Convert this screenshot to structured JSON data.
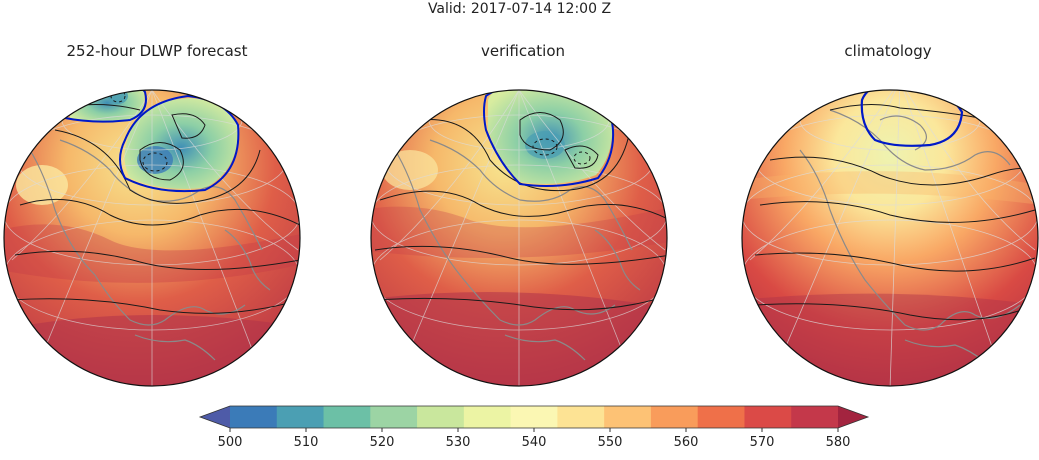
{
  "header": {
    "title": "Valid: 2017-07-14 12:00 Z"
  },
  "panels": [
    {
      "title": "252-hour DLWP forecast"
    },
    {
      "title": "verification"
    },
    {
      "title": "climatology"
    }
  ],
  "chart_data": {
    "type": "heatmap",
    "title": "Valid: 2017-07-14 12:00 Z",
    "variable_range": [
      500,
      580
    ],
    "colorbar": {
      "ticks": [
        500,
        510,
        520,
        530,
        540,
        550,
        560,
        570,
        580
      ],
      "levels": [
        500,
        505,
        510,
        515,
        520,
        525,
        530,
        535,
        540,
        545,
        550,
        555,
        560,
        565,
        570,
        575,
        580
      ],
      "colors": [
        "#4e5ba8",
        "#3b7bb8",
        "#4b9fb3",
        "#6cc0a6",
        "#9cd4a4",
        "#c9e79d",
        "#ecf4a4",
        "#fbf7b3",
        "#fde394",
        "#fdc275",
        "#f99c5b",
        "#ef7049",
        "#db4a47",
        "#c4384a",
        "#a3243f"
      ],
      "extend": "both"
    },
    "contours": {
      "highlighted_level_color": "#0019c8",
      "line_color": "#1a1a1a",
      "coastline_color": "#8a8a8a"
    },
    "panels": [
      "252-hour DLWP forecast",
      "verification",
      "climatology"
    ]
  }
}
